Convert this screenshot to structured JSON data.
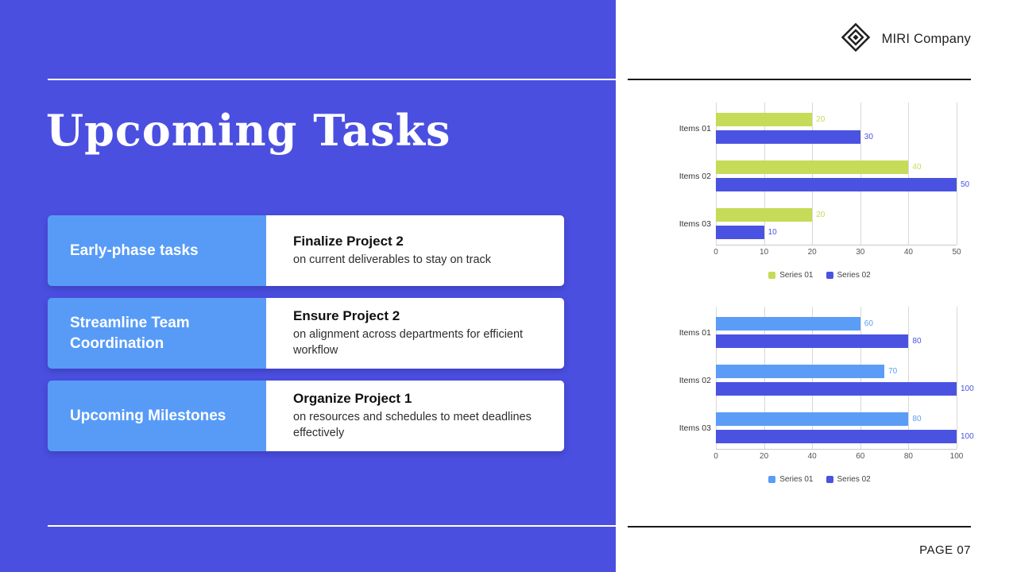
{
  "slide": {
    "title": "Upcoming Tasks",
    "company": "MIRI Company",
    "page_label": "PAGE 07"
  },
  "tasks": [
    {
      "label": "Early-phase tasks",
      "title": "Finalize Project 2",
      "description": "on current deliverables to stay on track"
    },
    {
      "label": "Streamline Team Coordination",
      "title": "Ensure Project 2",
      "description": "on alignment across departments for efficient workflow"
    },
    {
      "label": "Upcoming Milestones",
      "title": "Organize Project 1",
      "description": "on resources and schedules to meet deadlines effectively"
    }
  ],
  "colors": {
    "panel_blue": "#4B4FE0",
    "label_light_blue": "#579BF7",
    "series_green": "#C6DB57",
    "series_dark_blue": "#4A53E1",
    "series_light_blue": "#5B9CF6",
    "rule_dark": "#1a1a1a",
    "rule_white": "#ffffff"
  },
  "chart_data": [
    {
      "type": "bar",
      "orientation": "horizontal",
      "title": "",
      "categories": [
        "Items 01",
        "Items 02",
        "Items 03"
      ],
      "series": [
        {
          "name": "Series 01",
          "color": "#C6DB57",
          "values": [
            20,
            40,
            20
          ]
        },
        {
          "name": "Series 02",
          "color": "#4A53E1",
          "values": [
            30,
            50,
            10
          ]
        }
      ],
      "xlim": [
        0,
        50
      ],
      "xticks": [
        0,
        10,
        20,
        30,
        40,
        50
      ],
      "grid": true,
      "legend_position": "bottom"
    },
    {
      "type": "bar",
      "orientation": "horizontal",
      "title": "",
      "categories": [
        "Items 01",
        "Items 02",
        "Items 03"
      ],
      "series": [
        {
          "name": "Series 01",
          "color": "#5B9CF6",
          "values": [
            60,
            70,
            80
          ]
        },
        {
          "name": "Series 02",
          "color": "#4A53E1",
          "values": [
            80,
            100,
            100
          ]
        }
      ],
      "xlim": [
        0,
        100
      ],
      "xticks": [
        0,
        20,
        40,
        60,
        80,
        100
      ],
      "grid": true,
      "legend_position": "bottom"
    }
  ]
}
